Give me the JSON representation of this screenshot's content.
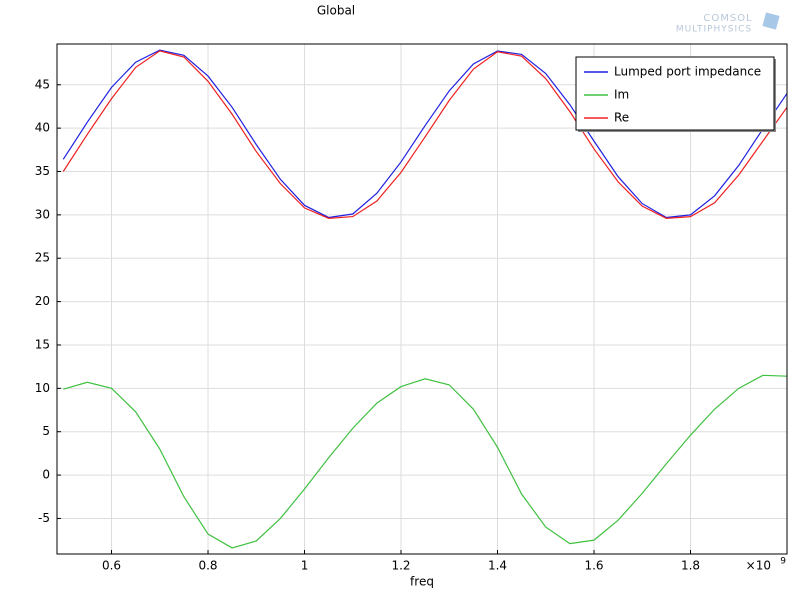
{
  "chart_data": {
    "type": "line",
    "title": "Global",
    "xlabel": "freq",
    "x_multiplier": {
      "base": "×10",
      "exponent": "9"
    },
    "watermark": [
      "COMSOL",
      "MULTIPHYSICS"
    ],
    "x": [
      0.5,
      0.55,
      0.6,
      0.65,
      0.7,
      0.75,
      0.8,
      0.85,
      0.9,
      0.95,
      1.0,
      1.05,
      1.1,
      1.15,
      1.2,
      1.25,
      1.3,
      1.35,
      1.4,
      1.45,
      1.5,
      1.55,
      1.6,
      1.65,
      1.7,
      1.75,
      1.8,
      1.85,
      1.9,
      1.95,
      2.0
    ],
    "series": [
      {
        "name": "Lumped port impedance",
        "color": "#2020e0",
        "values": [
          36.4,
          40.7,
          44.7,
          47.6,
          49.0,
          48.4,
          46.0,
          42.4,
          38.1,
          34.1,
          31.1,
          29.7,
          30.1,
          32.5,
          36.1,
          40.3,
          44.3,
          47.4,
          48.9,
          48.5,
          46.3,
          42.7,
          38.5,
          34.4,
          31.3,
          29.7,
          30.0,
          32.2,
          35.7,
          39.9,
          44.0
        ]
      },
      {
        "name": "Im",
        "color": "#40c040",
        "values": [
          9.9,
          10.7,
          10.0,
          7.3,
          3.0,
          -2.5,
          -6.8,
          -8.4,
          -7.6,
          -5.0,
          -1.6,
          2.0,
          5.4,
          8.3,
          10.2,
          11.1,
          10.4,
          7.6,
          3.2,
          -2.2,
          -6.0,
          -7.9,
          -7.5,
          -5.2,
          -2.1,
          1.3,
          4.6,
          7.6,
          10.0,
          11.5,
          11.4
        ]
      },
      {
        "name": "Re",
        "color": "#f02020",
        "values": [
          35.0,
          39.3,
          43.4,
          47.0,
          48.9,
          48.2,
          45.4,
          41.6,
          37.3,
          33.6,
          30.8,
          29.6,
          29.8,
          31.6,
          34.9,
          39.0,
          43.2,
          46.8,
          48.8,
          48.3,
          45.7,
          41.9,
          37.6,
          33.8,
          31.0,
          29.6,
          29.8,
          31.4,
          34.6,
          38.5,
          42.4
        ]
      }
    ],
    "xlim": [
      0.487,
      2.0
    ],
    "ylim": [
      -9.1,
      49.7
    ],
    "xticks": [
      0.6,
      0.8,
      1,
      1.2,
      1.4,
      1.6,
      1.8
    ],
    "yticks": [
      -5,
      0,
      5,
      10,
      15,
      20,
      25,
      30,
      35,
      40,
      45
    ],
    "grid": true,
    "legend": "top-right"
  }
}
